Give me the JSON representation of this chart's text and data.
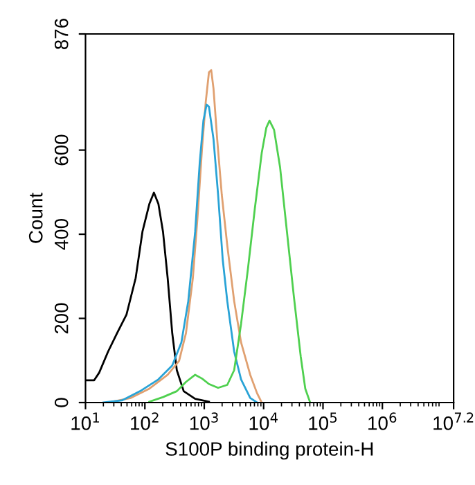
{
  "chart_data": {
    "type": "line",
    "xlabel": "S100P binding protein-H",
    "ylabel": "Count",
    "log": "x",
    "grid": false,
    "marker": "none",
    "line_style": "solid",
    "xlim": [
      10,
      15848932
    ],
    "xticks": [
      {
        "value": 10,
        "label": "10$^{1}$"
      },
      {
        "value": 100,
        "label": "10$^{2}$"
      },
      {
        "value": 1000,
        "label": "10$^{3}$"
      },
      {
        "value": 10000,
        "label": "10$^{4}$"
      },
      {
        "value": 100000,
        "label": "10$^{5}$"
      },
      {
        "value": 1000000,
        "label": "10$^{6}$"
      },
      {
        "value": 15848932,
        "label": "10$^{7.2}$"
      }
    ],
    "ylim": [
      0,
      876
    ],
    "yticks": [
      0,
      200,
      400,
      600,
      876
    ],
    "series": [
      {
        "color": "#000000",
        "x": [
          10,
          14,
          17,
          24,
          34,
          49,
          70,
          91,
          119,
          142,
          169,
          202,
          242,
          289,
          345,
          451,
          703,
          1200
        ],
        "values": [
          53,
          53,
          71,
          121,
          165,
          209,
          296,
          406,
          472,
          499,
          472,
          406,
          296,
          165,
          77,
          27,
          9,
          2
        ]
      },
      {
        "color": "#e0a070",
        "x": [
          24,
          58,
          119,
          242,
          377,
          492,
          643,
          769,
          918,
          1059,
          1200,
          1310,
          1432,
          1652,
          1974,
          2443,
          3191,
          4169,
          5943,
          7762,
          9290
        ],
        "values": [
          0,
          11,
          33,
          66,
          99,
          165,
          296,
          439,
          604,
          714,
          785,
          790,
          746,
          626,
          494,
          373,
          241,
          143,
          66,
          22,
          0
        ]
      },
      {
        "color": "#29a3d6",
        "x": [
          20,
          41,
          83,
          169,
          289,
          412,
          538,
          703,
          840,
          968,
          1096,
          1200,
          1432,
          1711,
          2046,
          2443,
          3191,
          4169,
          5943,
          7762
        ],
        "values": [
          0,
          5,
          27,
          55,
          88,
          143,
          241,
          406,
          571,
          670,
          708,
          703,
          626,
          494,
          340,
          241,
          121,
          55,
          11,
          0
        ]
      },
      {
        "color": "#4fd04f",
        "x": [
          119,
          202,
          345,
          492,
          703,
          918,
          1200,
          1711,
          2443,
          3191,
          4169,
          5445,
          7112,
          9290,
          11091,
          12560,
          15000,
          18900,
          24700,
          32300,
          42100,
          50300,
          60100
        ],
        "values": [
          2,
          13,
          27,
          49,
          66,
          57,
          44,
          35,
          42,
          77,
          187,
          318,
          461,
          593,
          653,
          670,
          648,
          560,
          406,
          252,
          110,
          33,
          2
        ]
      }
    ]
  }
}
